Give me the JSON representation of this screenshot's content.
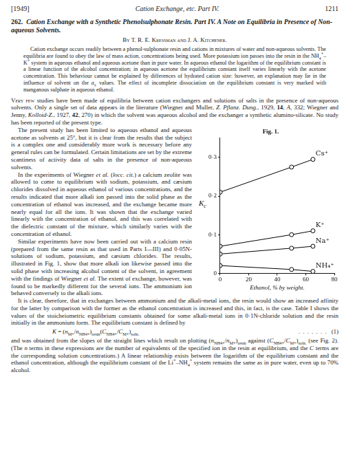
{
  "document": {
    "header": {
      "left": "[1949]",
      "center": "Cation Exchange, etc. Part IV.",
      "right": "1211"
    },
    "title": {
      "number": "262.",
      "text": "Cation Exchange with a Synthetic Phenolsulphonate Resin. Part IV. A Note on Equilibria in Presence of Non-aqueous Solvents."
    },
    "authors": "By T. R. E. Kressman and J. A. Kitchener.",
    "abstract": [
      "Cation exchange occurs readily between a phenol-sulphonate resin and cations in mixtures of water and non-aqueous solvents. The equilibria are found to obey the law of mass action, concentrations being used. More potassium ion passes into the resin in the NH",
      {
        "sub": "4"
      },
      {
        "sup": "+"
      },
      "–K",
      {
        "sup": "+"
      },
      " system in aqueous ethanol and aqueous acetone than in pure water. In aqueous ethanol the logarithm of the equilibrium constant is a linear function of the alcohol concentration; in aqueous acetone the equilibrium constant itself varies linearly with the acetone concentration. This behaviour cannot be explained by differences of hydrated cation size: however, an explanation may lie in the influence of solvent on the ",
      {
        "i": "a"
      },
      {
        "sub": "±"
      },
      " values. The effect of incomplete dissociation on the equilibrium constant is very marked with manganous sulphate in aqueous ethanol."
    ],
    "body": [
      {
        "runs": [
          {
            "sc": "Very few"
          },
          " studies have been made of equilibria between cation exchangers and solutions of salts in the presence of non-aqueous solvents. Only a single set of data appears in the literature (Wiegner and Muller, ",
          {
            "i": "Z. Pflanz. Dung."
          },
          ", 1929, ",
          {
            "b": "14"
          },
          ", ",
          {
            "i": "A"
          },
          ", 332; Wiegner and Jenny, ",
          {
            "i": "Kolloid-Z."
          },
          ", 1927, ",
          {
            "b": "42"
          },
          ", 270) in which the solvent was aqueous alcohol and the exchanger a synthetic alumino-silicate. No study has been reported of the present type."
        ]
      },
      {
        "runs": [
          "The present study has been limited to aqueous ethanol and aqueous acetone as solvents at 25°, but it is clear from the results that the subject is a complex one and considerably more work is necessary before any general rules can be formulated. Certain limitations are set by the extreme scantiness of activity data of salts in the presence of non-aqueous solvents."
        ]
      },
      {
        "runs": [
          "In the experiments of Wiegner ",
          {
            "i": "et al."
          },
          " (",
          {
            "i": "locc. cit."
          },
          ") a calcium zeolite was allowed to come to equilibrium with sodium, potassium, and cæsium chlorides dissolved in aqueous ethanol of various concentrations, and the results indicated that more alkali ion passed into the solid phase as the concentration of ethanol was increased, and the exchange became more nearly equal for all the ions. It was shown that the exchange varied linearly with the concentration of ethanol, and this was correlated with the dielectric constant of the mixture, which similarly varies with the concentration of ethanol."
        ]
      },
      {
        "runs": [
          "Similar experiments have now been carried out with a calcium resin (prepared from the same resin as that used in Parts I—III) and 0·05N-solutions of sodium, potassium, and cæsium chlorides. The results, illustrated in Fig. 1, show that more alkali ion likewise passed into the solid phase with increasing alcohol content of the solvent, in agreement with the findings of Wiegner ",
          {
            "i": "et al."
          },
          " The extent of exchange, however, was found to be markedly different for the several ions. The ammonium ion behaved conversely to the alkali ions."
        ]
      },
      {
        "runs": [
          "It is clear, therefore, that in exchanges between ammonium and the alkali-metal ions, the resin would show an increased affinity for the latter by comparison with the former as the ethanol concentration is increased and this, in fact, is the case. Table I shows the values of the stoicheiometric equilibrium constants obtained for some alkali-metal ions in 0·1N-chloride solution and the resin initially in the ammonium form. The equilibrium constant is defined by"
        ]
      },
      {
        "equation": [
          {
            "i": "K"
          },
          " = (",
          {
            "i": "n"
          },
          {
            "sub": "M+"
          },
          "/",
          {
            "i": "n"
          },
          {
            "sub": "NH4+"
          },
          ")",
          {
            "sub": "resin"
          },
          "(",
          {
            "i": "C"
          },
          {
            "sub": "NH4+"
          },
          "/",
          {
            "i": "C"
          },
          {
            "sub": "M+"
          },
          ")",
          {
            "sub": "soln."
          }
        ],
        "leader": ". . . . . . .",
        "number": "(1)"
      },
      {
        "runs": [
          "and was obtained from the slopes of the straight lines which result on plotting (",
          {
            "i": "n"
          },
          {
            "sub": "NH4+"
          },
          "/",
          {
            "i": "n"
          },
          {
            "sub": "M+"
          },
          ")",
          {
            "sub": "resin"
          },
          " against (",
          {
            "i": "C"
          },
          {
            "sub": "NH4+"
          },
          "/",
          {
            "i": "C"
          },
          {
            "sub": "M+"
          },
          ")",
          {
            "sub": "soln."
          },
          " (see Fig. 2). (The ",
          {
            "i": "n"
          },
          " terms in these expressions are the number of equivalents of the specified ion in the resin at equilibrium, and the ",
          {
            "i": "C"
          },
          " terms are the corresponding solution concentrations.) A linear relationship exists between the logarithm of the equilibrium constant and the ethanol concentration, although the equilibrium constant of the Li",
          {
            "sup": "+"
          },
          "–NH",
          {
            "sub": "4"
          },
          {
            "sup": "+"
          },
          " system remains the same as in pure water, even up to 70% alcohol."
        ],
        "first": true
      }
    ]
  },
  "chart_data": {
    "type": "line",
    "title": "Fig. 1.",
    "x_label": "Ethanol, % by weight.",
    "y_label": "Kc",
    "x": [
      0,
      50,
      65
    ],
    "series": [
      {
        "name": "Cs⁺",
        "color": "#000000",
        "values": [
          0.21,
          0.275,
          0.295
        ]
      },
      {
        "name": "K⁺",
        "color": "#000000",
        "values": [
          0.07,
          0.1,
          0.11
        ]
      },
      {
        "name": "Na⁺",
        "color": "#000000",
        "values": [
          0.05,
          0.065,
          0.07
        ]
      },
      {
        "name": "NH₄⁺",
        "color": "#000000",
        "values": [
          0.02,
          0.01,
          0.005
        ]
      }
    ],
    "xlim": [
      0,
      80
    ],
    "xticks": [
      0,
      20,
      40,
      60,
      80
    ],
    "ylim": [
      0,
      0.35
    ],
    "yticks": [
      0,
      {
        "value": 0.1,
        "label": "0·1"
      },
      {
        "value": 0.2,
        "label": "0·2"
      },
      {
        "value": 0.3,
        "label": "0·3"
      }
    ],
    "grid": false,
    "marker": "circle",
    "line_style": "solid"
  }
}
